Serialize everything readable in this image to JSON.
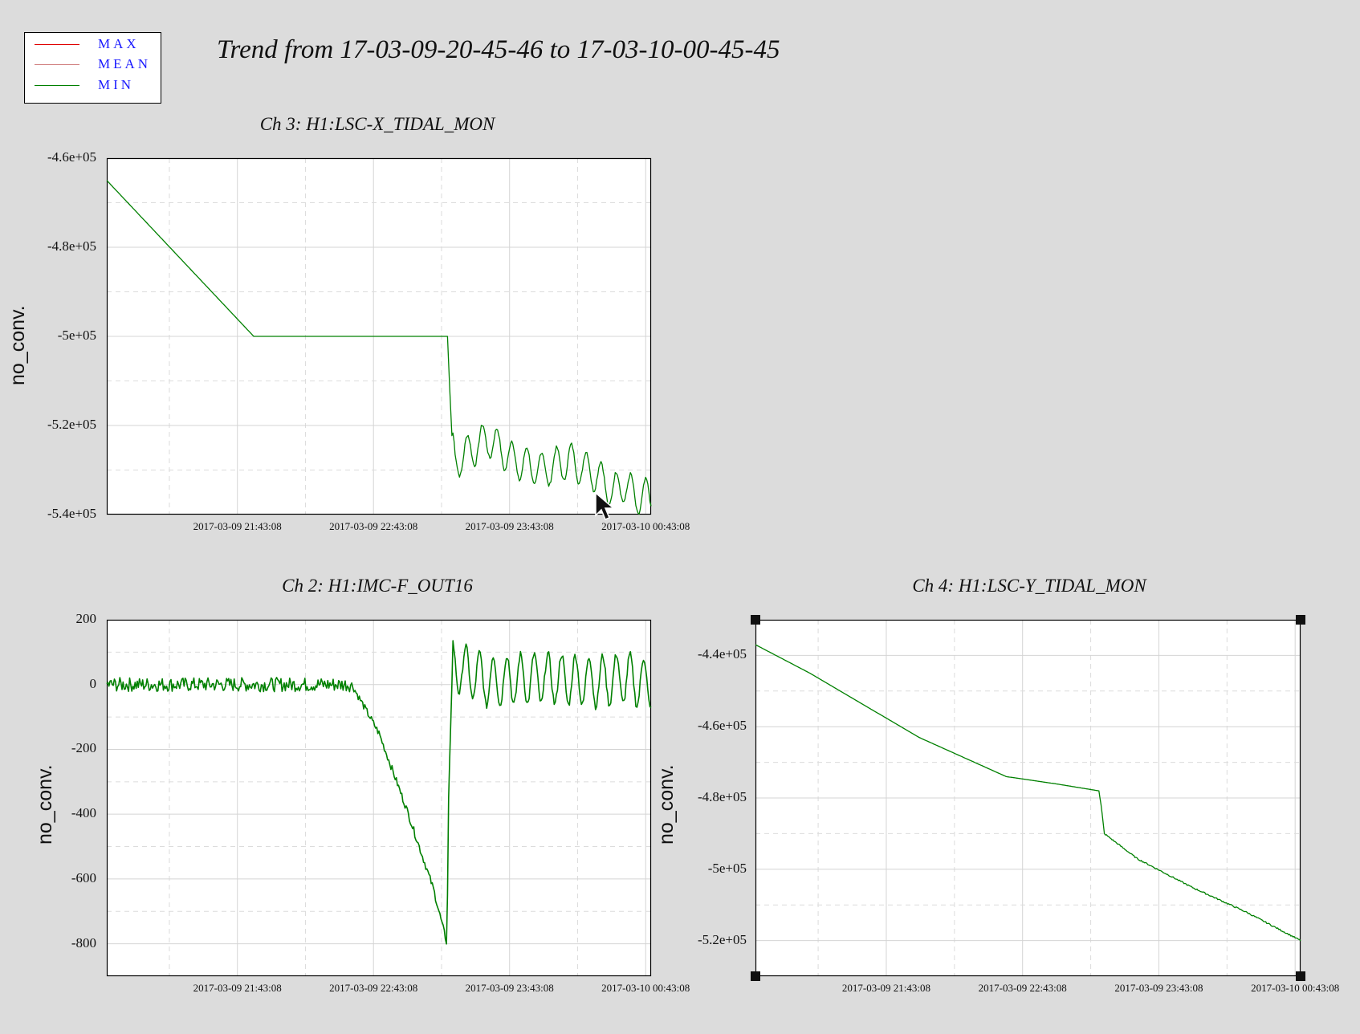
{
  "legend": {
    "items": [
      {
        "label": "MAX",
        "color": "#e00000"
      },
      {
        "label": "MEAN",
        "color": "#d08080"
      },
      {
        "label": "MIN",
        "color": "#008000"
      }
    ]
  },
  "title": "Trend from 17-03-09-20-45-46 to 17-03-10-00-45-45",
  "chart_data": [
    {
      "type": "line",
      "title": "Ch 3: H1:LSC-X_TIDAL_MON",
      "ylabel": "no_conv.",
      "ylim": [
        -540000,
        -460000
      ],
      "yticks": [
        "-4.6e+05",
        "-4.8e+05",
        "-5e+05",
        "-5.2e+05",
        "-5.4e+05"
      ],
      "xticks": [
        "2017-03-09 21:43:08",
        "2017-03-09 22:43:08",
        "2017-03-09 23:43:08",
        "2017-03-10 00:43:08"
      ],
      "grid": true,
      "series": [
        {
          "name": "MIN",
          "color": "#008000",
          "x": [
            0,
            0.27,
            0.627,
            0.628,
            0.635,
            0.64,
            0.7,
            0.75,
            0.8,
            0.85,
            0.9,
            0.93,
            0.95,
            0.97,
            1.0
          ],
          "values": [
            -465000,
            -500000,
            -500000,
            -506000,
            -525000,
            -528000,
            -523000,
            -528000,
            -530000,
            -528000,
            -531000,
            -535000,
            -533000,
            -536000,
            -536000
          ]
        }
      ]
    },
    {
      "type": "line",
      "title": "Ch 2: H1:IMC-F_OUT16",
      "ylabel": "no_conv.",
      "ylim": [
        -900,
        200
      ],
      "yticks": [
        "200",
        "0",
        "-200",
        "-400",
        "-600",
        "-800"
      ],
      "xticks": [
        "2017-03-09 21:43:08",
        "2017-03-09 22:43:08",
        "2017-03-09 23:43:08",
        "2017-03-10 00:43:08"
      ],
      "grid": true,
      "series": [
        {
          "name": "MIN",
          "color": "#008000",
          "x": [
            0,
            0.45,
            0.5,
            0.55,
            0.6,
            0.625,
            0.628,
            0.635,
            0.7,
            0.8,
            0.9,
            0.95,
            1.0
          ],
          "values": [
            0,
            0,
            -150,
            -380,
            -630,
            -800,
            -350,
            60,
            10,
            20,
            10,
            20,
            0
          ]
        }
      ]
    },
    {
      "type": "line",
      "title": "Ch 4: H1:LSC-Y_TIDAL_MON",
      "ylabel": "no_conv.",
      "ylim": [
        -530000,
        -430000
      ],
      "yticks": [
        "-4.4e+05",
        "-4.6e+05",
        "-4.8e+05",
        "-5e+05",
        "-5.2e+05"
      ],
      "xticks": [
        "2017-03-09 21:43:08",
        "2017-03-09 22:43:08",
        "2017-03-09 23:43:08",
        "2017-03-10 00:43:08"
      ],
      "grid": true,
      "series": [
        {
          "name": "MIN",
          "color": "#008000",
          "x": [
            0,
            0.1,
            0.2,
            0.3,
            0.46,
            0.55,
            0.63,
            0.635,
            0.64,
            0.7,
            0.8,
            0.9,
            1.0
          ],
          "values": [
            -437000,
            -445000,
            -454000,
            -463000,
            -474000,
            -476000,
            -478000,
            -483000,
            -490000,
            -497000,
            -505000,
            -512000,
            -520000
          ]
        }
      ]
    }
  ]
}
